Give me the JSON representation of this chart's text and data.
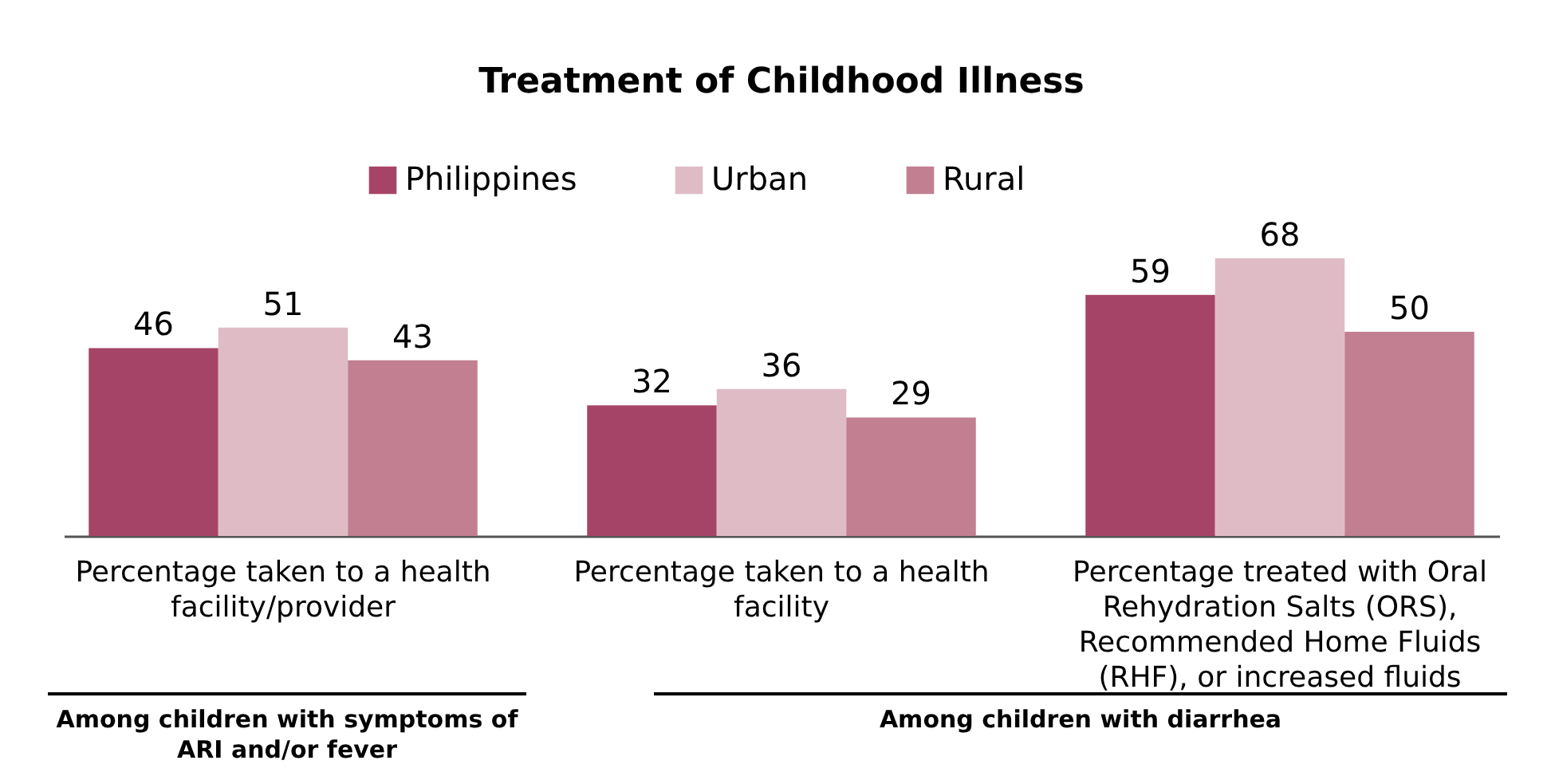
{
  "chart_data": {
    "type": "bar",
    "title": "Treatment of Childhood Illness",
    "categories": [
      "Percentage taken to a health facility/provider",
      "Percentage taken to a health facility",
      "Percentage treated with Oral Rehydration Salts (ORS), Recommended Home Fluids (RHF), or increased fluids"
    ],
    "series": [
      {
        "name": "Philippines",
        "color": "#a64467",
        "values": [
          46,
          32,
          59
        ]
      },
      {
        "name": "Urban",
        "color": "#dfbcc5",
        "values": [
          51,
          36,
          68
        ]
      },
      {
        "name": "Rural",
        "color": "#c17f91",
        "values": [
          43,
          29,
          50
        ]
      }
    ],
    "data_labels": true,
    "legend": "top",
    "annotations": [
      "Among children with symptoms of ARI and/or fever",
      "Among children with diarrhea"
    ]
  }
}
